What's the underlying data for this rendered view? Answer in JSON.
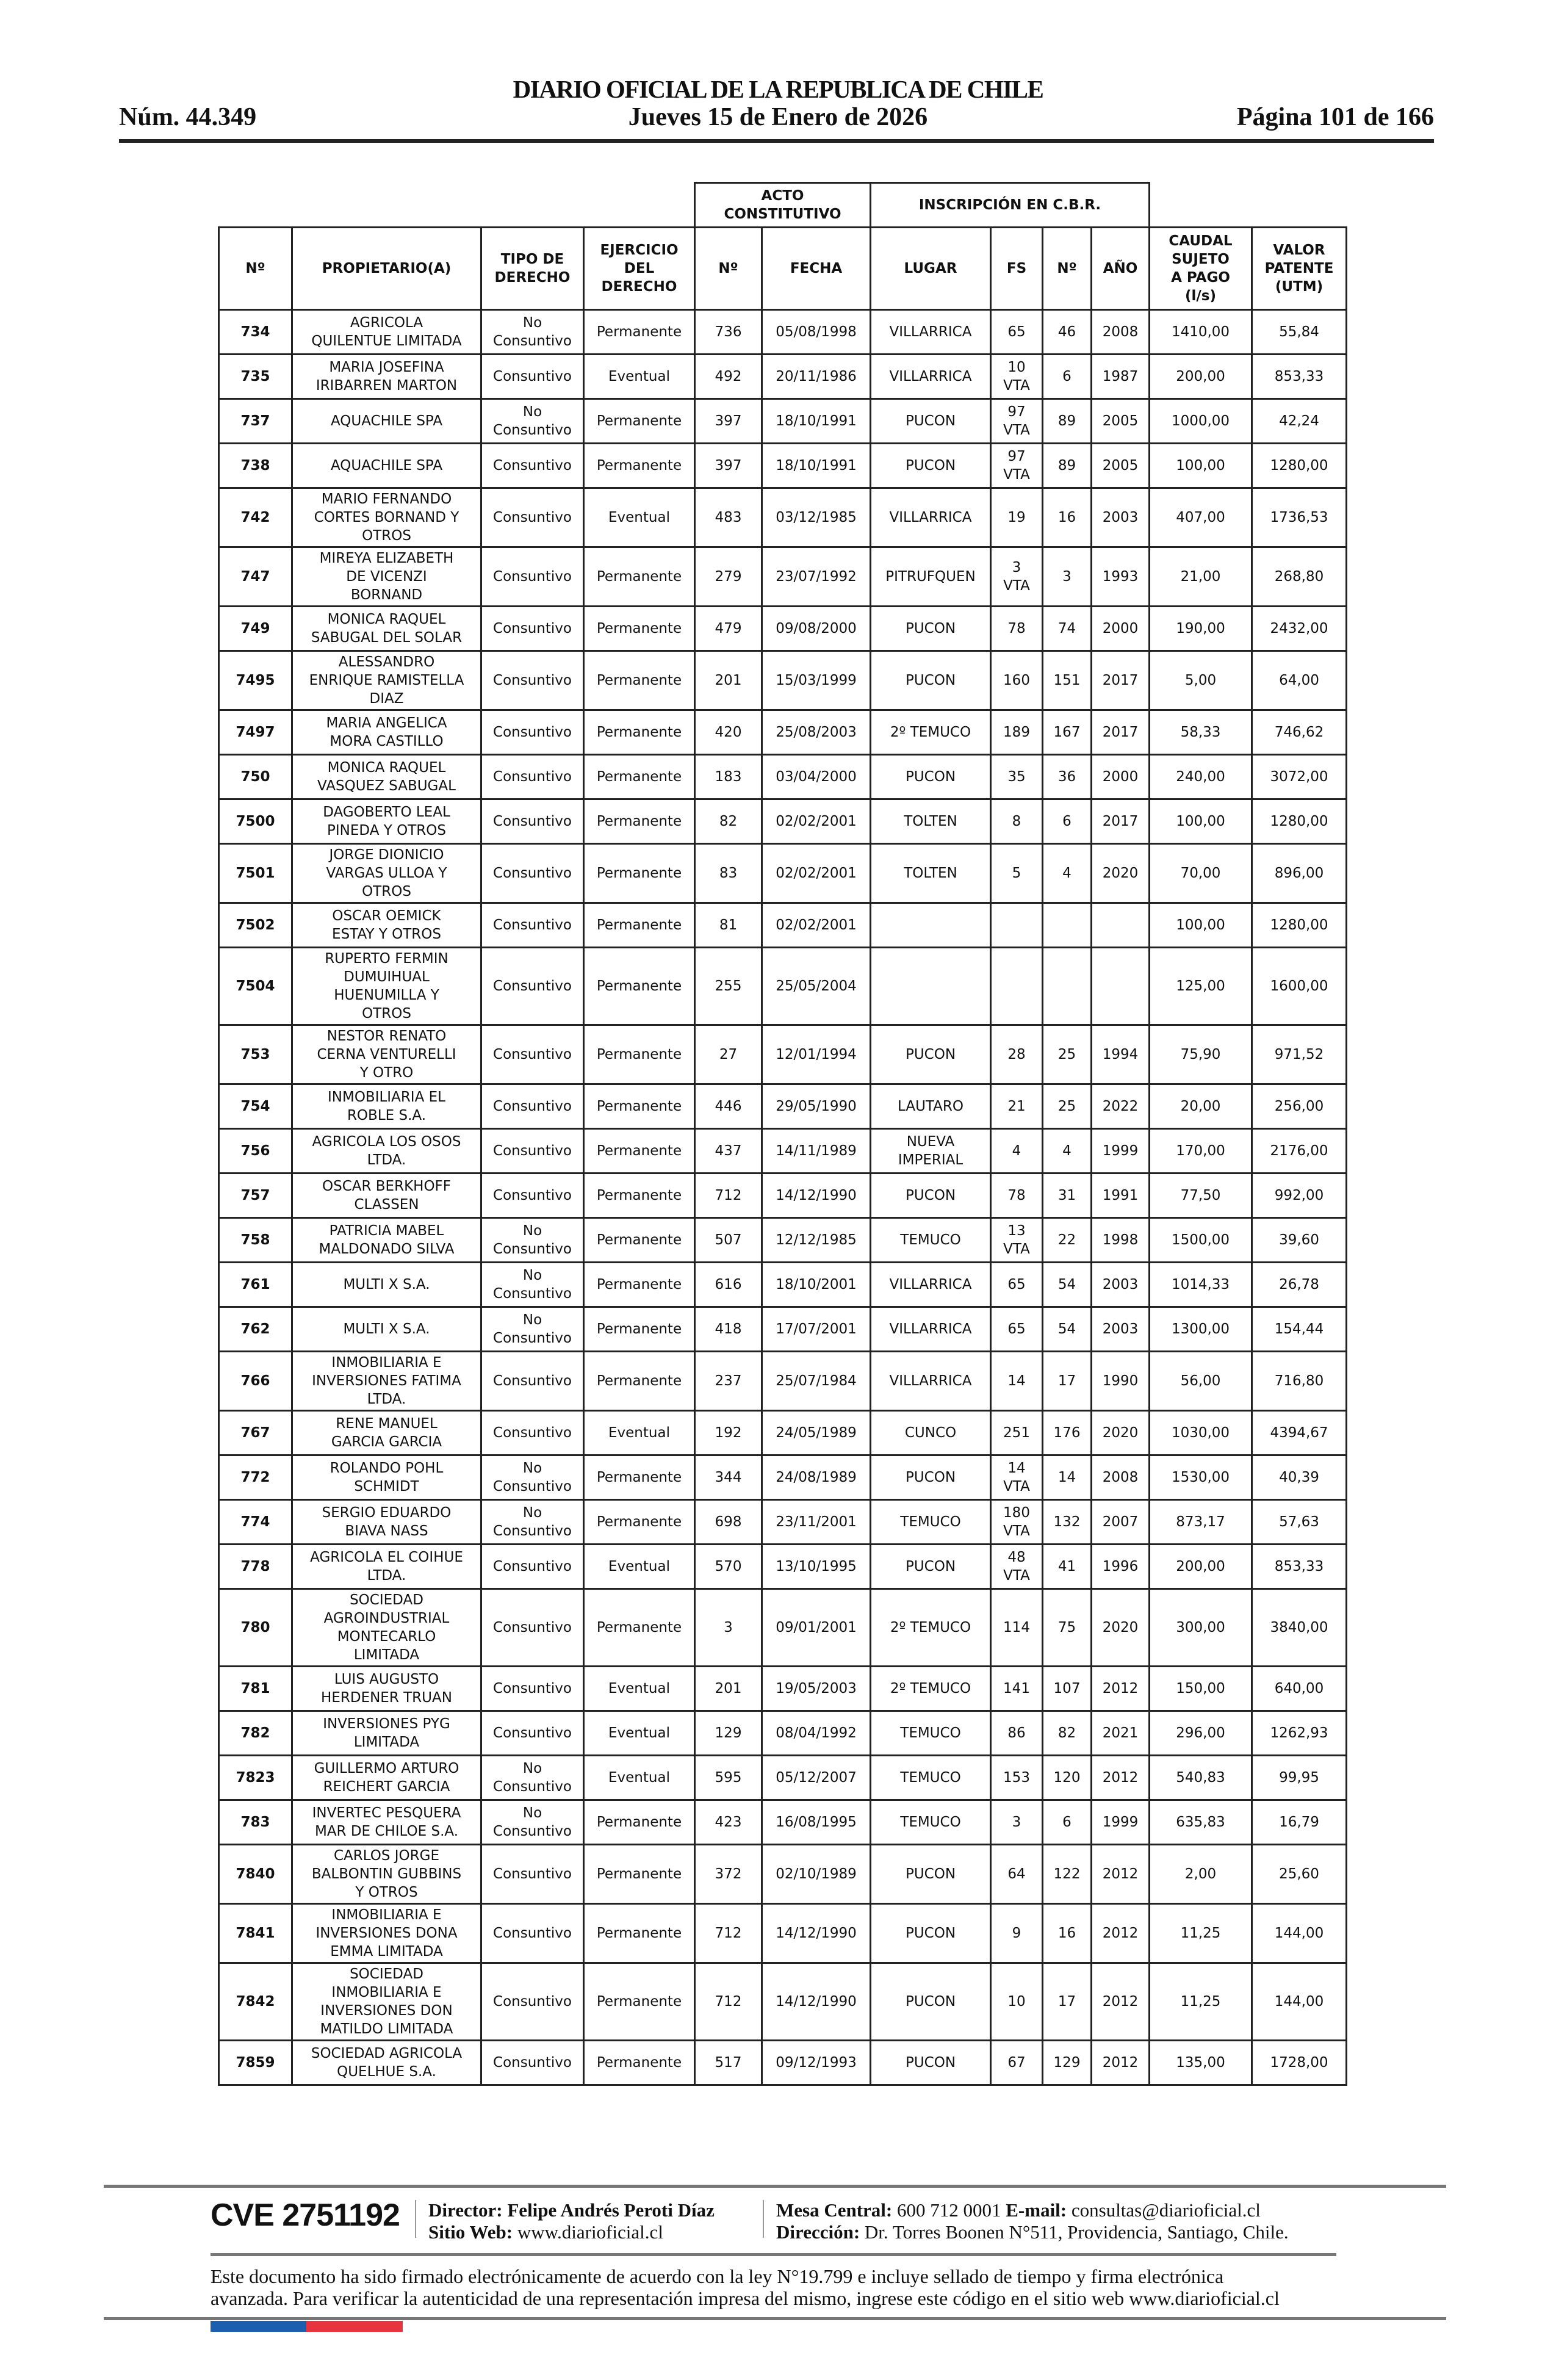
{
  "header": {
    "title": "DIARIO OFICIAL DE LA REPUBLICA DE CHILE",
    "issue_number": "Núm. 44.349",
    "date": "Jueves 15 de Enero de 2026",
    "page": "Página 101 de 166"
  },
  "table": {
    "group_headers": {
      "acto": "ACTO\nCONSTITUTIVO",
      "inscripcion": "INSCRIPCIÓN EN C.B.R."
    },
    "columns": [
      "Nº",
      "PROPIETARIO(A)",
      "TIPO DE\nDERECHO",
      "EJERCICIO\nDEL\nDERECHO",
      "Nº",
      "FECHA",
      "LUGAR",
      "FS",
      "Nº",
      "AÑO",
      "CAUDAL\nSUJETO\nA PAGO\n(l/s)",
      "VALOR\nPATENTE\n(UTM)"
    ],
    "rows": [
      [
        "734",
        "AGRICOLA\nQUILENTUE LIMITADA",
        "No\nConsuntivo",
        "Permanente",
        "736",
        "05/08/1998",
        "VILLARRICA",
        "65",
        "46",
        "2008",
        "1410,00",
        "55,84"
      ],
      [
        "735",
        "MARIA JOSEFINA\nIRIBARREN MARTON",
        "Consuntivo",
        "Eventual",
        "492",
        "20/11/1986",
        "VILLARRICA",
        "10\nVTA",
        "6",
        "1987",
        "200,00",
        "853,33"
      ],
      [
        "737",
        "AQUACHILE SPA",
        "No\nConsuntivo",
        "Permanente",
        "397",
        "18/10/1991",
        "PUCON",
        "97\nVTA",
        "89",
        "2005",
        "1000,00",
        "42,24"
      ],
      [
        "738",
        "AQUACHILE SPA",
        "Consuntivo",
        "Permanente",
        "397",
        "18/10/1991",
        "PUCON",
        "97\nVTA",
        "89",
        "2005",
        "100,00",
        "1280,00"
      ],
      [
        "742",
        "MARIO FERNANDO\nCORTES BORNAND Y\nOTROS",
        "Consuntivo",
        "Eventual",
        "483",
        "03/12/1985",
        "VILLARRICA",
        "19",
        "16",
        "2003",
        "407,00",
        "1736,53"
      ],
      [
        "747",
        "MIREYA ELIZABETH\nDE VICENZI\nBORNAND",
        "Consuntivo",
        "Permanente",
        "279",
        "23/07/1992",
        "PITRUFQUEN",
        "3\nVTA",
        "3",
        "1993",
        "21,00",
        "268,80"
      ],
      [
        "749",
        "MONICA RAQUEL\nSABUGAL DEL SOLAR",
        "Consuntivo",
        "Permanente",
        "479",
        "09/08/2000",
        "PUCON",
        "78",
        "74",
        "2000",
        "190,00",
        "2432,00"
      ],
      [
        "7495",
        "ALESSANDRO\nENRIQUE RAMISTELLA\nDIAZ",
        "Consuntivo",
        "Permanente",
        "201",
        "15/03/1999",
        "PUCON",
        "160",
        "151",
        "2017",
        "5,00",
        "64,00"
      ],
      [
        "7497",
        "MARIA ANGELICA\nMORA CASTILLO",
        "Consuntivo",
        "Permanente",
        "420",
        "25/08/2003",
        "2º TEMUCO",
        "189",
        "167",
        "2017",
        "58,33",
        "746,62"
      ],
      [
        "750",
        "MONICA RAQUEL\nVASQUEZ SABUGAL",
        "Consuntivo",
        "Permanente",
        "183",
        "03/04/2000",
        "PUCON",
        "35",
        "36",
        "2000",
        "240,00",
        "3072,00"
      ],
      [
        "7500",
        "DAGOBERTO LEAL\nPINEDA Y OTROS",
        "Consuntivo",
        "Permanente",
        "82",
        "02/02/2001",
        "TOLTEN",
        "8",
        "6",
        "2017",
        "100,00",
        "1280,00"
      ],
      [
        "7501",
        "JORGE DIONICIO\nVARGAS ULLOA Y\nOTROS",
        "Consuntivo",
        "Permanente",
        "83",
        "02/02/2001",
        "TOLTEN",
        "5",
        "4",
        "2020",
        "70,00",
        "896,00"
      ],
      [
        "7502",
        "OSCAR OEMICK\nESTAY Y OTROS",
        "Consuntivo",
        "Permanente",
        "81",
        "02/02/2001",
        "",
        "",
        "",
        "",
        "100,00",
        "1280,00"
      ],
      [
        "7504",
        "RUPERTO FERMIN\nDUMUIHUAL\nHUENUMILLA Y\nOTROS",
        "Consuntivo",
        "Permanente",
        "255",
        "25/05/2004",
        "",
        "",
        "",
        "",
        "125,00",
        "1600,00"
      ],
      [
        "753",
        "NESTOR RENATO\nCERNA VENTURELLI\nY OTRO",
        "Consuntivo",
        "Permanente",
        "27",
        "12/01/1994",
        "PUCON",
        "28",
        "25",
        "1994",
        "75,90",
        "971,52"
      ],
      [
        "754",
        "INMOBILIARIA EL\nROBLE S.A.",
        "Consuntivo",
        "Permanente",
        "446",
        "29/05/1990",
        "LAUTARO",
        "21",
        "25",
        "2022",
        "20,00",
        "256,00"
      ],
      [
        "756",
        "AGRICOLA LOS OSOS\nLTDA.",
        "Consuntivo",
        "Permanente",
        "437",
        "14/11/1989",
        "NUEVA\nIMPERIAL",
        "4",
        "4",
        "1999",
        "170,00",
        "2176,00"
      ],
      [
        "757",
        "OSCAR BERKHOFF\nCLASSEN",
        "Consuntivo",
        "Permanente",
        "712",
        "14/12/1990",
        "PUCON",
        "78",
        "31",
        "1991",
        "77,50",
        "992,00"
      ],
      [
        "758",
        "PATRICIA MABEL\nMALDONADO SILVA",
        "No\nConsuntivo",
        "Permanente",
        "507",
        "12/12/1985",
        "TEMUCO",
        "13\nVTA",
        "22",
        "1998",
        "1500,00",
        "39,60"
      ],
      [
        "761",
        "MULTI X S.A.",
        "No\nConsuntivo",
        "Permanente",
        "616",
        "18/10/2001",
        "VILLARRICA",
        "65",
        "54",
        "2003",
        "1014,33",
        "26,78"
      ],
      [
        "762",
        "MULTI X S.A.",
        "No\nConsuntivo",
        "Permanente",
        "418",
        "17/07/2001",
        "VILLARRICA",
        "65",
        "54",
        "2003",
        "1300,00",
        "154,44"
      ],
      [
        "766",
        "INMOBILIARIA E\nINVERSIONES FATIMA\nLTDA.",
        "Consuntivo",
        "Permanente",
        "237",
        "25/07/1984",
        "VILLARRICA",
        "14",
        "17",
        "1990",
        "56,00",
        "716,80"
      ],
      [
        "767",
        "RENE MANUEL\nGARCIA GARCIA",
        "Consuntivo",
        "Eventual",
        "192",
        "24/05/1989",
        "CUNCO",
        "251",
        "176",
        "2020",
        "1030,00",
        "4394,67"
      ],
      [
        "772",
        "ROLANDO POHL\nSCHMIDT",
        "No\nConsuntivo",
        "Permanente",
        "344",
        "24/08/1989",
        "PUCON",
        "14\nVTA",
        "14",
        "2008",
        "1530,00",
        "40,39"
      ],
      [
        "774",
        "SERGIO EDUARDO\nBIAVA NASS",
        "No\nConsuntivo",
        "Permanente",
        "698",
        "23/11/2001",
        "TEMUCO",
        "180\nVTA",
        "132",
        "2007",
        "873,17",
        "57,63"
      ],
      [
        "778",
        "AGRICOLA EL COIHUE\nLTDA.",
        "Consuntivo",
        "Eventual",
        "570",
        "13/10/1995",
        "PUCON",
        "48\nVTA",
        "41",
        "1996",
        "200,00",
        "853,33"
      ],
      [
        "780",
        "SOCIEDAD\nAGROINDUSTRIAL\nMONTECARLO\nLIMITADA",
        "Consuntivo",
        "Permanente",
        "3",
        "09/01/2001",
        "2º TEMUCO",
        "114",
        "75",
        "2020",
        "300,00",
        "3840,00"
      ],
      [
        "781",
        "LUIS AUGUSTO\nHERDENER TRUAN",
        "Consuntivo",
        "Eventual",
        "201",
        "19/05/2003",
        "2º TEMUCO",
        "141",
        "107",
        "2012",
        "150,00",
        "640,00"
      ],
      [
        "782",
        "INVERSIONES PYG\nLIMITADA",
        "Consuntivo",
        "Eventual",
        "129",
        "08/04/1992",
        "TEMUCO",
        "86",
        "82",
        "2021",
        "296,00",
        "1262,93"
      ],
      [
        "7823",
        "GUILLERMO ARTURO\nREICHERT GARCIA",
        "No\nConsuntivo",
        "Eventual",
        "595",
        "05/12/2007",
        "TEMUCO",
        "153",
        "120",
        "2012",
        "540,83",
        "99,95"
      ],
      [
        "783",
        "INVERTEC PESQUERA\nMAR DE CHILOE S.A.",
        "No\nConsuntivo",
        "Permanente",
        "423",
        "16/08/1995",
        "TEMUCO",
        "3",
        "6",
        "1999",
        "635,83",
        "16,79"
      ],
      [
        "7840",
        "CARLOS JORGE\nBALBONTIN GUBBINS\nY OTROS",
        "Consuntivo",
        "Permanente",
        "372",
        "02/10/1989",
        "PUCON",
        "64",
        "122",
        "2012",
        "2,00",
        "25,60"
      ],
      [
        "7841",
        "INMOBILIARIA E\nINVERSIONES DONA\nEMMA LIMITADA",
        "Consuntivo",
        "Permanente",
        "712",
        "14/12/1990",
        "PUCON",
        "9",
        "16",
        "2012",
        "11,25",
        "144,00"
      ],
      [
        "7842",
        "SOCIEDAD\nINMOBILIARIA E\nINVERSIONES DON\nMATILDO LIMITADA",
        "Consuntivo",
        "Permanente",
        "712",
        "14/12/1990",
        "PUCON",
        "10",
        "17",
        "2012",
        "11,25",
        "144,00"
      ],
      [
        "7859",
        "SOCIEDAD AGRICOLA\nQUELHUE S.A.",
        "Consuntivo",
        "Permanente",
        "517",
        "09/12/1993",
        "PUCON",
        "67",
        "129",
        "2012",
        "135,00",
        "1728,00"
      ]
    ]
  },
  "footer": {
    "cve": "CVE 2751192",
    "director_label": "Director:",
    "director": "Felipe Andrés Peroti Díaz",
    "web_label": "Sitio Web:",
    "web": "www.diarioficial.cl",
    "phone_label": "Mesa Central:",
    "phone": "600 712 0001",
    "email_label": "E-mail:",
    "email": "consultas@diarioficial.cl",
    "address_label": "Dirección:",
    "address": "Dr. Torres Boonen N°511, Providencia, Santiago, Chile.",
    "disclaimer_line1": "Este documento ha sido firmado electrónicamente de acuerdo con la ley N°19.799 e incluye sellado de tiempo y firma electrónica",
    "disclaimer_line2": "avanzada. Para verificar la autenticidad de una representación impresa del mismo, ingrese este código en el sitio web www.diarioficial.cl",
    "flag_colors": {
      "blue": "#1b5fae",
      "red": "#e8343f"
    }
  }
}
